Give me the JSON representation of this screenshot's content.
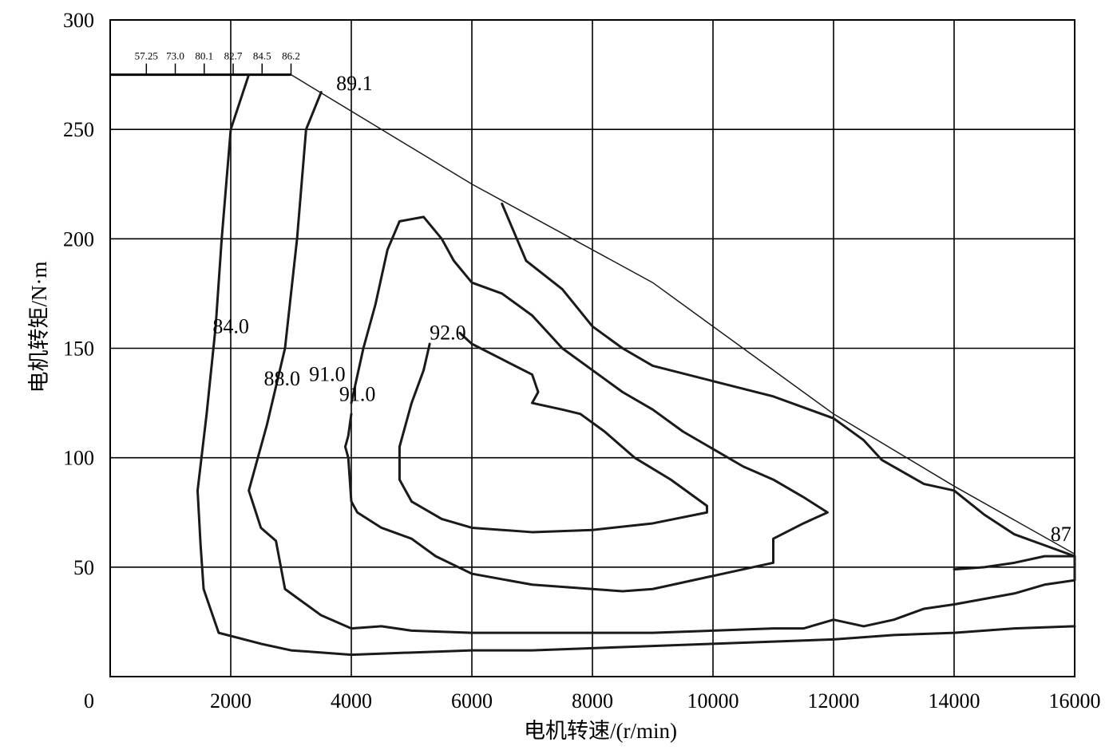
{
  "chart_data": {
    "type": "contour",
    "xlabel": "电机转速/(r/min)",
    "ylabel": "电机转矩/N·m",
    "xlim": [
      0,
      16000
    ],
    "ylim": [
      0,
      300
    ],
    "x_ticks": [
      "0",
      "2000",
      "4000",
      "6000",
      "8000",
      "10000",
      "12000",
      "14000",
      "16000"
    ],
    "y_ticks": [
      "300",
      "250",
      "200",
      "150",
      "100",
      "50"
    ],
    "grid": true,
    "efficiency_scale": [
      "57.25",
      "73.0",
      "80.1",
      "82.7",
      "84.5",
      "86.2"
    ],
    "envelope": [
      [
        0,
        275
      ],
      [
        3000,
        275
      ],
      [
        6000,
        225
      ],
      [
        9000,
        180
      ],
      [
        12000,
        120
      ],
      [
        14000,
        87
      ],
      [
        16000,
        56
      ],
      [
        16000,
        0
      ]
    ],
    "contours": [
      {
        "label": "84.0",
        "label_at": [
          1700,
          157
        ],
        "points": [
          [
            2300,
            275
          ],
          [
            2000,
            250
          ],
          [
            1850,
            200
          ],
          [
            1750,
            160
          ],
          [
            1600,
            120
          ],
          [
            1450,
            85
          ],
          [
            1500,
            60
          ],
          [
            1550,
            40
          ],
          [
            1800,
            20
          ],
          [
            2500,
            15
          ],
          [
            3000,
            12
          ],
          [
            4000,
            10
          ],
          [
            5000,
            11
          ],
          [
            6000,
            12
          ],
          [
            7000,
            12
          ],
          [
            8000,
            13
          ],
          [
            9000,
            14
          ],
          [
            10000,
            15
          ],
          [
            11000,
            16
          ],
          [
            12000,
            17
          ],
          [
            13000,
            19
          ],
          [
            14000,
            20
          ],
          [
            15000,
            22
          ],
          [
            16000,
            23
          ]
        ]
      },
      {
        "label": "88.0",
        "label_at": [
          2550,
          133
        ],
        "points": [
          [
            3500,
            267
          ],
          [
            3250,
            250
          ],
          [
            3100,
            200
          ],
          [
            2900,
            150
          ],
          [
            2600,
            115
          ],
          [
            2300,
            85
          ],
          [
            2500,
            68
          ],
          [
            2750,
            62
          ],
          [
            2900,
            40
          ],
          [
            3500,
            28
          ],
          [
            4000,
            22
          ],
          [
            4500,
            23
          ],
          [
            5000,
            21
          ],
          [
            6000,
            20
          ],
          [
            7000,
            20
          ],
          [
            8000,
            20
          ],
          [
            9000,
            20
          ],
          [
            10000,
            21
          ],
          [
            11000,
            22
          ],
          [
            11500,
            22
          ],
          [
            12000,
            26
          ],
          [
            12500,
            23
          ],
          [
            13000,
            26
          ],
          [
            13500,
            31
          ],
          [
            14000,
            33
          ],
          [
            15000,
            38
          ],
          [
            15500,
            42
          ],
          [
            16000,
            44
          ],
          [
            16000,
            55
          ]
        ]
      },
      {
        "label": "91.0",
        "label_at": [
          3300,
          135
        ],
        "points": [
          [
            6500,
            216
          ],
          [
            6900,
            190
          ],
          [
            7500,
            177
          ],
          [
            8000,
            160
          ],
          [
            8500,
            150
          ],
          [
            9000,
            142
          ],
          [
            10000,
            135
          ],
          [
            11000,
            128
          ],
          [
            12000,
            118
          ],
          [
            12500,
            108
          ],
          [
            12800,
            99
          ],
          [
            13500,
            88
          ],
          [
            14000,
            85
          ],
          [
            14500,
            74
          ],
          [
            15000,
            65
          ],
          [
            15500,
            60
          ],
          [
            15800,
            57
          ],
          [
            16000,
            55
          ],
          [
            15500,
            55
          ],
          [
            15000,
            52
          ],
          [
            14500,
            50
          ],
          [
            14000,
            49
          ]
        ]
      },
      {
        "label": "91.0",
        "label_at": [
          3800,
          126
        ],
        "points": [
          [
            4000,
            120
          ],
          [
            3950,
            110
          ],
          [
            3900,
            105
          ],
          [
            3950,
            100
          ],
          [
            4000,
            80
          ],
          [
            4100,
            75
          ],
          [
            4500,
            68
          ],
          [
            5000,
            63
          ],
          [
            5400,
            55
          ],
          [
            6000,
            47
          ],
          [
            7000,
            42
          ],
          [
            8000,
            40
          ],
          [
            8500,
            39
          ],
          [
            9000,
            40
          ],
          [
            10000,
            46
          ],
          [
            11000,
            52
          ],
          [
            11000,
            63
          ],
          [
            11500,
            70
          ],
          [
            11900,
            75
          ],
          [
            11500,
            82
          ],
          [
            11000,
            90
          ],
          [
            10500,
            96
          ],
          [
            10000,
            104
          ],
          [
            9500,
            112
          ],
          [
            9000,
            122
          ],
          [
            8500,
            130
          ],
          [
            8000,
            140
          ],
          [
            7500,
            150
          ],
          [
            7000,
            165
          ],
          [
            6500,
            175
          ],
          [
            6000,
            180
          ],
          [
            5700,
            190
          ],
          [
            5500,
            200
          ],
          [
            5200,
            210
          ],
          [
            4800,
            208
          ],
          [
            4600,
            195
          ],
          [
            4400,
            170
          ],
          [
            4200,
            150
          ],
          [
            4000,
            125
          ]
        ]
      },
      {
        "label": "92.0",
        "label_at": [
          5300,
          154
        ],
        "points": [
          [
            5300,
            152
          ],
          [
            5200,
            140
          ],
          [
            5000,
            125
          ],
          [
            4800,
            105
          ],
          [
            4800,
            90
          ],
          [
            5000,
            80
          ],
          [
            5500,
            72
          ],
          [
            6000,
            68
          ],
          [
            7000,
            66
          ],
          [
            8000,
            67
          ],
          [
            9000,
            70
          ],
          [
            9900,
            75
          ],
          [
            9900,
            78
          ],
          [
            9300,
            90
          ],
          [
            8700,
            100
          ],
          [
            8200,
            112
          ],
          [
            7800,
            120
          ],
          [
            7500,
            122
          ],
          [
            7000,
            125
          ],
          [
            7100,
            130
          ],
          [
            7000,
            138
          ],
          [
            6500,
            145
          ],
          [
            6000,
            152
          ],
          [
            5800,
            157
          ]
        ]
      },
      {
        "label": "87",
        "label_at": [
          15600,
          62
        ],
        "points": []
      },
      {
        "label": "89.1",
        "label_at": [
          3750,
          268
        ],
        "points": []
      }
    ]
  }
}
